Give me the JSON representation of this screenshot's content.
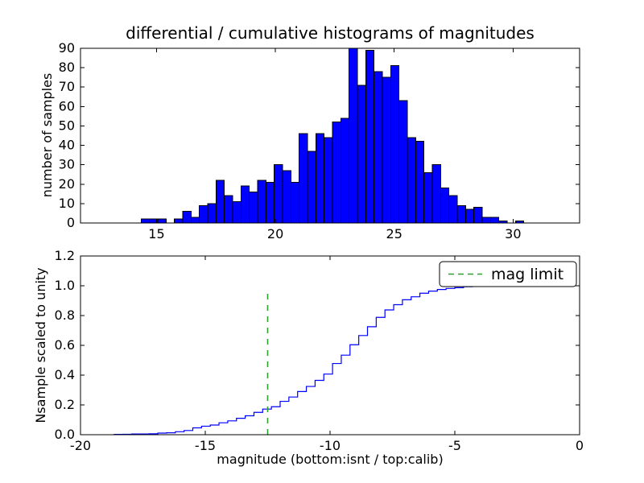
{
  "figure": {
    "background": "#ffffff",
    "frame_color": "#000000"
  },
  "chart_data": [
    {
      "type": "bar",
      "title": "differential / cumulative histograms of magnitudes",
      "ylabel": "number of samples",
      "bin_start": 14.35,
      "bin_width": 0.35,
      "counts": [
        2,
        2,
        2,
        0,
        2,
        6,
        3,
        9,
        10,
        22,
        14,
        11,
        19,
        16,
        22,
        21,
        30,
        27,
        21,
        46,
        37,
        46,
        44,
        52,
        54,
        90,
        71,
        89,
        78,
        75,
        81,
        63,
        44,
        42,
        26,
        30,
        18,
        14,
        9,
        7,
        8,
        3,
        3,
        1,
        0,
        1
      ],
      "xlim": [
        11.8,
        32.8
      ],
      "ylim": [
        0,
        90
      ],
      "xticks": [
        15,
        20,
        25,
        30
      ],
      "xtick_labels": [
        "15",
        "20",
        "25",
        "30"
      ],
      "yticks": [
        0,
        10,
        20,
        30,
        40,
        50,
        60,
        70,
        80,
        90
      ],
      "ytick_labels": [
        "0",
        "10",
        "20",
        "30",
        "40",
        "50",
        "60",
        "70",
        "80",
        "90"
      ],
      "bar_color": "#0000ff",
      "bar_edge_color": "#000000",
      "grid": false
    },
    {
      "type": "line",
      "subtype": "cumulative-step-histogram",
      "ylabel": "Nsample scaled to unity",
      "xlabel": "magnitude (bottom:isnt / top:calib)",
      "bin_start": -18.65,
      "bin_width": 0.35,
      "cumulative_y": [
        0.002,
        0.003,
        0.005,
        0.005,
        0.006,
        0.011,
        0.013,
        0.02,
        0.028,
        0.046,
        0.057,
        0.065,
        0.08,
        0.093,
        0.11,
        0.127,
        0.15,
        0.172,
        0.188,
        0.224,
        0.253,
        0.29,
        0.324,
        0.365,
        0.407,
        0.478,
        0.534,
        0.604,
        0.666,
        0.725,
        0.788,
        0.838,
        0.873,
        0.906,
        0.926,
        0.95,
        0.964,
        0.975,
        0.982,
        0.987,
        0.994,
        0.996,
        0.998,
        0.999,
        0.999,
        1.0
      ],
      "xlim": [
        -20,
        0
      ],
      "ylim": [
        0,
        1.2
      ],
      "xticks": [
        -20,
        -15,
        -10,
        -5,
        0
      ],
      "xtick_labels": [
        "-20",
        "-15",
        "-10",
        "-5",
        "0"
      ],
      "yticks": [
        0,
        0.2,
        0.4,
        0.6,
        0.8,
        1.0,
        1.2
      ],
      "ytick_labels": [
        "0.0",
        "0.2",
        "0.4",
        "0.6",
        "0.8",
        "1.0",
        "1.2"
      ],
      "line_color": "#0000ff",
      "mag_limit": {
        "x": -12.5,
        "y_top": 0.97,
        "color": "#2ca02c",
        "label": "mag limit"
      },
      "legend": {
        "label": "mag limit",
        "position": "upper right",
        "line_style": "dashed"
      },
      "grid": false
    }
  ]
}
